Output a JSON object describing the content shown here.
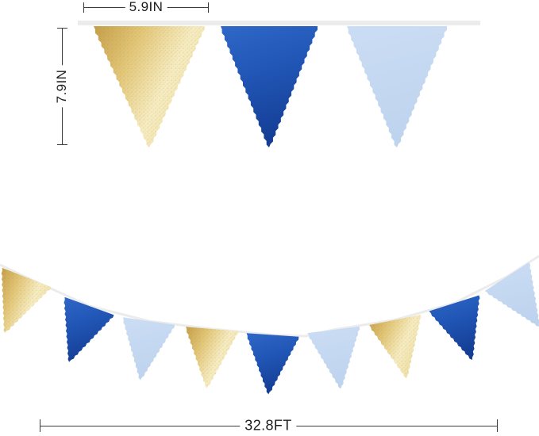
{
  "annotations": {
    "flag_width": "5.9IN",
    "flag_height": "7.9IN",
    "banner_length": "32.8FT"
  },
  "colors": {
    "gold": "#e0c377",
    "blue": "#2156b6",
    "light_blue": "#c6daf2",
    "ribbon": "#ececec",
    "dimension": "#3c3c3c"
  },
  "top_banner": {
    "flags": [
      "gold",
      "blue",
      "light_blue"
    ]
  },
  "bottom_banner": {
    "flags": [
      "gold",
      "blue",
      "light_blue",
      "gold",
      "blue",
      "light_blue",
      "gold",
      "blue",
      "light_blue"
    ]
  }
}
